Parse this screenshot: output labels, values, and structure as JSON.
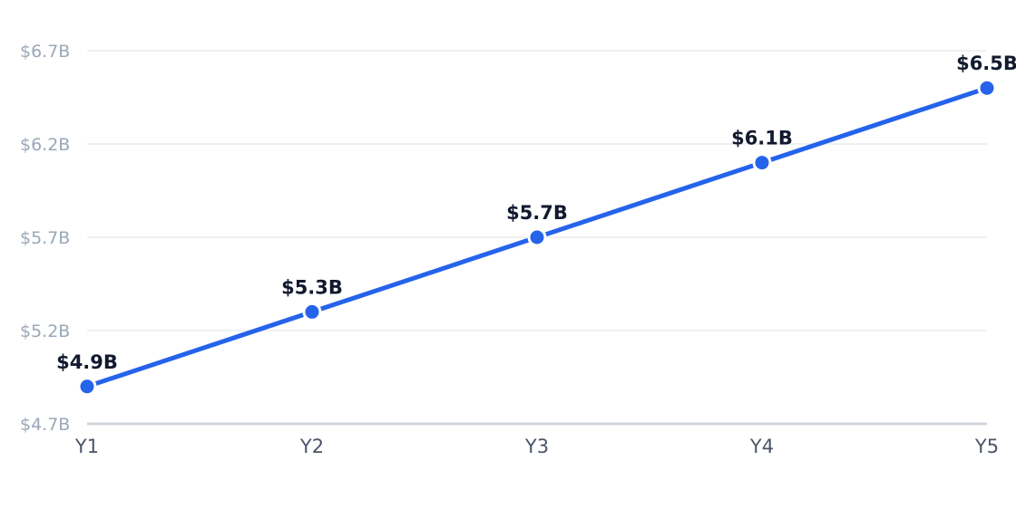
{
  "chart_data": {
    "type": "line",
    "title": "",
    "xlabel": "",
    "ylabel": "",
    "categories": [
      "Y1",
      "Y2",
      "Y3",
      "Y4",
      "Y5"
    ],
    "series": [
      {
        "values": [
          4.9,
          5.3,
          5.7,
          6.1,
          6.5
        ],
        "data_labels": [
          "$4.9B",
          "$5.3B",
          "$5.7B",
          "$6.1B",
          "$6.5B"
        ],
        "color": "#2563eb"
      }
    ],
    "y_ticks": [
      4.7,
      5.2,
      5.7,
      6.2,
      6.7
    ],
    "y_tick_labels": [
      "$4.7B",
      "$5.2B",
      "$5.7B",
      "$6.2B",
      "$6.7B"
    ],
    "ylim": [
      4.7,
      6.7
    ],
    "grid": true,
    "legend": "none"
  }
}
